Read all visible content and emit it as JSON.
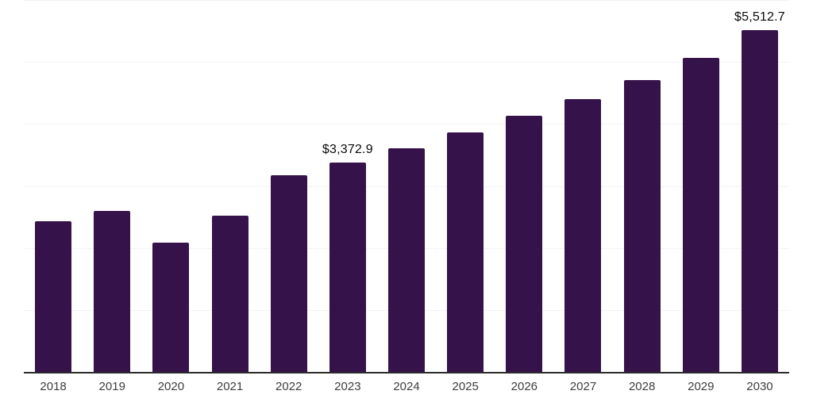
{
  "chart_data": {
    "type": "bar",
    "title": "",
    "xlabel": "",
    "ylabel": "",
    "categories": [
      "2018",
      "2019",
      "2020",
      "2021",
      "2022",
      "2023",
      "2024",
      "2025",
      "2026",
      "2027",
      "2028",
      "2029",
      "2030"
    ],
    "values": [
      2425,
      2595,
      2090,
      2515,
      3170,
      3372.9,
      3607,
      3864,
      4133,
      4403,
      4711,
      5071,
      5512.7
    ],
    "data_labels": {
      "2023": "$3,372.9",
      "2030": "$5,512.7"
    },
    "ylim": [
      0,
      6000
    ],
    "gridline_step": 1000,
    "grid": "horizontal",
    "legend": "none",
    "y_axis_labels_visible": false
  },
  "colors": {
    "bar": "#36124a",
    "axis_line": "#2a2a2a",
    "gridline": "#f3f3f3",
    "value_label_text": "#0a0a0a",
    "tick_label_text": "#3d3d3d",
    "background": "#ffffff"
  }
}
